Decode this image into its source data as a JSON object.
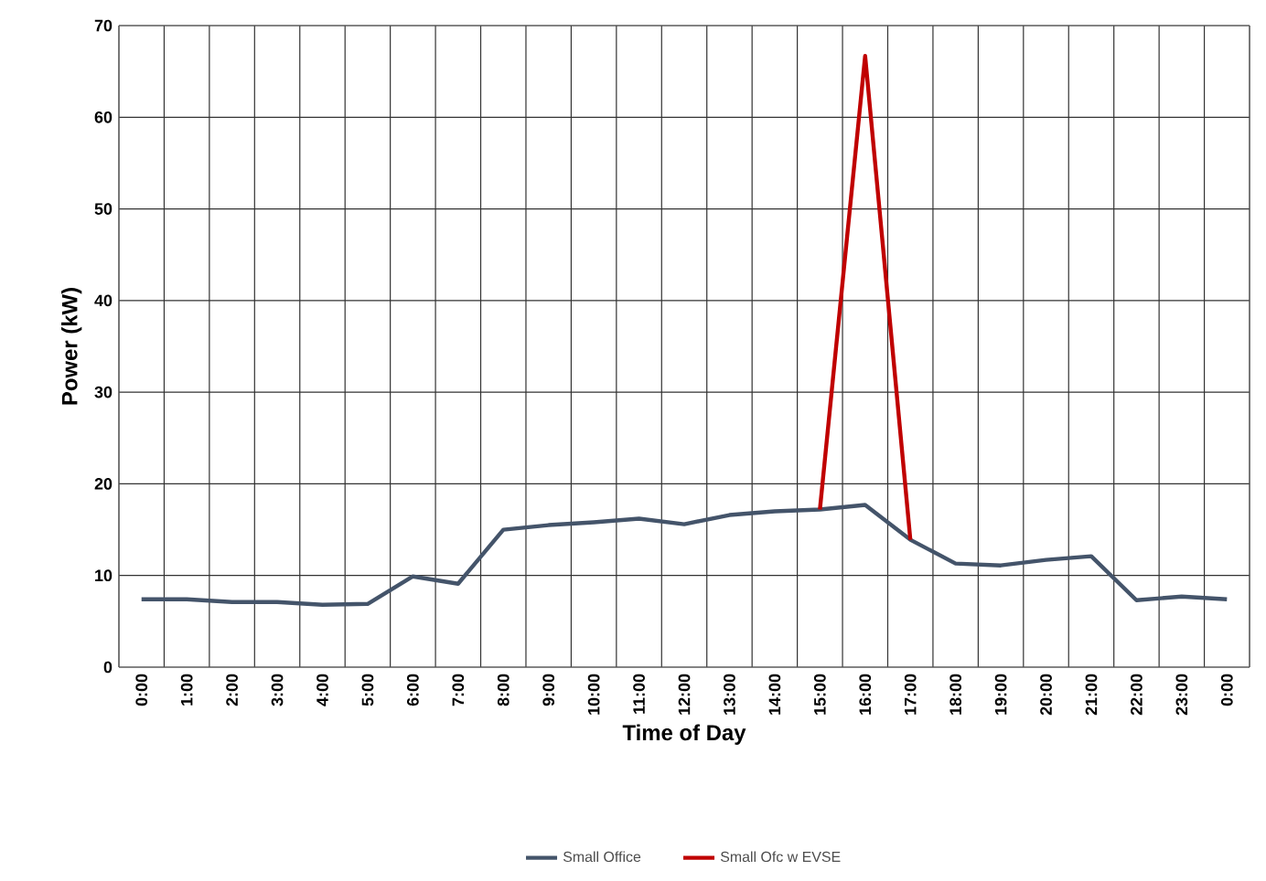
{
  "chart_data": {
    "type": "line",
    "xlabel": "Time of Day",
    "ylabel": "Power (kW)",
    "categories": [
      "0:00",
      "1:00",
      "2:00",
      "3:00",
      "4:00",
      "5:00",
      "6:00",
      "7:00",
      "8:00",
      "9:00",
      "10:00",
      "11:00",
      "12:00",
      "13:00",
      "14:00",
      "15:00",
      "16:00",
      "17:00",
      "18:00",
      "19:00",
      "20:00",
      "21:00",
      "22:00",
      "23:00",
      "0:00"
    ],
    "series": [
      {
        "name": "Small Office",
        "color": "#44546a",
        "values": [
          7.4,
          7.4,
          7.1,
          7.1,
          6.8,
          6.9,
          9.9,
          9.1,
          15.0,
          15.5,
          15.8,
          16.2,
          15.6,
          16.6,
          17.0,
          17.2,
          17.7,
          13.9,
          11.3,
          11.1,
          11.7,
          12.1,
          7.3,
          7.7,
          7.4
        ]
      },
      {
        "name": "Small Ofc w EVSE",
        "color": "#c00000",
        "values": [
          null,
          null,
          null,
          null,
          null,
          null,
          null,
          null,
          null,
          null,
          null,
          null,
          null,
          null,
          null,
          17.2,
          66.7,
          13.9,
          null,
          null,
          null,
          null,
          null,
          null,
          null
        ]
      }
    ],
    "ylim": [
      0,
      70
    ],
    "yticks": [
      0,
      10,
      20,
      30,
      40,
      50,
      60,
      70
    ],
    "grid": true,
    "legend": "bottom",
    "marker": "none",
    "line_style": "solid"
  }
}
